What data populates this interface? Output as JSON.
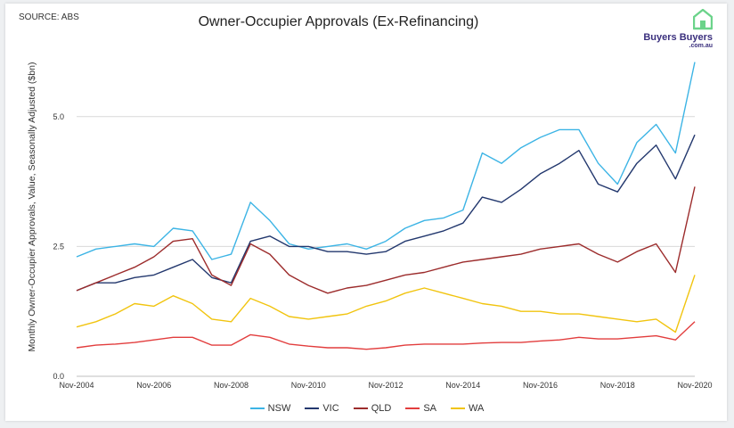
{
  "source_label": "SOURCE: ABS",
  "logo": {
    "name": "Buyers Buyers",
    "domain": ".com.au",
    "icon": "house-icon",
    "house_color": "#6bd38a"
  },
  "chart_data": {
    "type": "line",
    "title": "Owner-Occupier Approvals (Ex-Refinancing)",
    "ylabel": "Monthly Owner-Occupier Approvals, Value, Seasonally Adjusted ($bn)",
    "xlabel": "",
    "ylim": [
      0,
      6.25
    ],
    "yticks": [
      0.0,
      2.5,
      5.0
    ],
    "ytick_labels": [
      "0.0",
      "2.5",
      "5.0"
    ],
    "xlim": [
      "2004-11",
      "2020-11"
    ],
    "xtick_labels": [
      "Nov-2004",
      "Nov-2006",
      "Nov-2008",
      "Nov-2010",
      "Nov-2012",
      "Nov-2014",
      "Nov-2016",
      "Nov-2018",
      "Nov-2020"
    ],
    "grid": "horizontal",
    "legend_position": "bottom",
    "x": [
      "2004-11",
      "2005-05",
      "2005-11",
      "2006-05",
      "2006-11",
      "2007-05",
      "2007-11",
      "2008-05",
      "2008-11",
      "2009-05",
      "2009-11",
      "2010-05",
      "2010-11",
      "2011-05",
      "2011-11",
      "2012-05",
      "2012-11",
      "2013-05",
      "2013-11",
      "2014-05",
      "2014-11",
      "2015-05",
      "2015-11",
      "2016-05",
      "2016-11",
      "2017-05",
      "2017-11",
      "2018-05",
      "2018-11",
      "2019-05",
      "2019-11",
      "2020-05",
      "2020-11"
    ],
    "series": [
      {
        "name": "NSW",
        "color": "#3cb4e5",
        "values": [
          2.3,
          2.45,
          2.5,
          2.55,
          2.5,
          2.85,
          2.8,
          2.25,
          2.35,
          3.35,
          3.0,
          2.55,
          2.45,
          2.5,
          2.55,
          2.45,
          2.6,
          2.85,
          3.0,
          3.05,
          3.2,
          4.3,
          4.1,
          4.4,
          4.6,
          4.75,
          4.75,
          4.1,
          3.7,
          4.5,
          4.85,
          4.3,
          6.05
        ]
      },
      {
        "name": "VIC",
        "color": "#23386e",
        "values": [
          1.65,
          1.8,
          1.8,
          1.9,
          1.95,
          2.1,
          2.25,
          1.9,
          1.8,
          2.6,
          2.7,
          2.5,
          2.5,
          2.4,
          2.4,
          2.35,
          2.4,
          2.6,
          2.7,
          2.8,
          2.95,
          3.45,
          3.35,
          3.6,
          3.9,
          4.1,
          4.35,
          3.7,
          3.55,
          4.1,
          4.45,
          3.8,
          4.65
        ]
      },
      {
        "name": "QLD",
        "color": "#9c2c2c",
        "values": [
          1.65,
          1.8,
          1.95,
          2.1,
          2.3,
          2.6,
          2.65,
          1.95,
          1.75,
          2.55,
          2.35,
          1.95,
          1.75,
          1.6,
          1.7,
          1.75,
          1.85,
          1.95,
          2.0,
          2.1,
          2.2,
          2.25,
          2.3,
          2.35,
          2.45,
          2.5,
          2.55,
          2.35,
          2.2,
          2.4,
          2.55,
          2.0,
          3.65
        ]
      },
      {
        "name": "SA",
        "color": "#e23d3d",
        "values": [
          0.55,
          0.6,
          0.62,
          0.65,
          0.7,
          0.75,
          0.75,
          0.6,
          0.6,
          0.8,
          0.75,
          0.62,
          0.58,
          0.55,
          0.55,
          0.52,
          0.55,
          0.6,
          0.62,
          0.62,
          0.62,
          0.64,
          0.65,
          0.65,
          0.68,
          0.7,
          0.75,
          0.72,
          0.72,
          0.75,
          0.78,
          0.7,
          1.05
        ]
      },
      {
        "name": "WA",
        "color": "#f1c40f",
        "values": [
          0.95,
          1.05,
          1.2,
          1.4,
          1.35,
          1.55,
          1.4,
          1.1,
          1.05,
          1.5,
          1.35,
          1.15,
          1.1,
          1.15,
          1.2,
          1.35,
          1.45,
          1.6,
          1.7,
          1.6,
          1.5,
          1.4,
          1.35,
          1.25,
          1.25,
          1.2,
          1.2,
          1.15,
          1.1,
          1.05,
          1.1,
          0.85,
          1.95
        ]
      }
    ]
  }
}
